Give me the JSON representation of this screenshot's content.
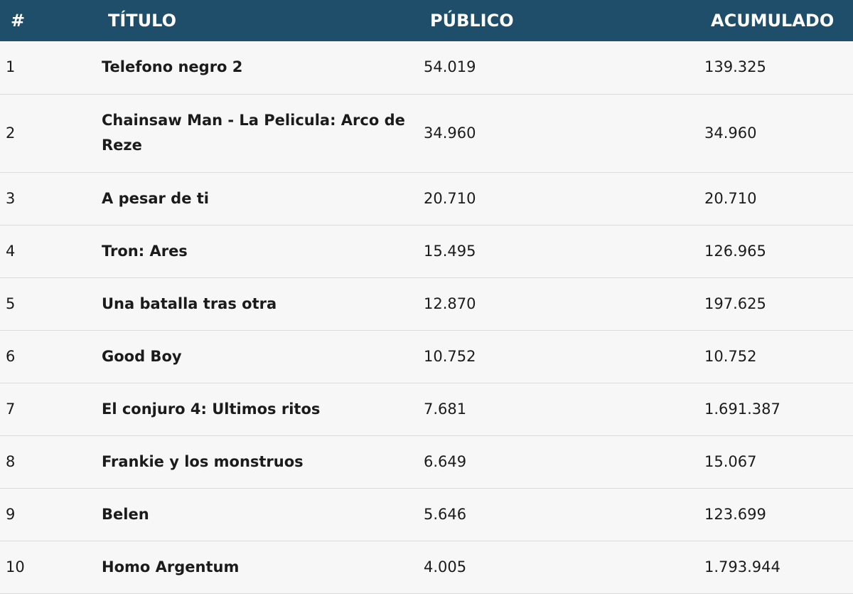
{
  "table": {
    "header": [
      "#",
      "TÍTULO",
      "PÚBLICO",
      "ACUMULADO"
    ],
    "rows": [
      [
        "1",
        "Telefono negro 2",
        "54.019",
        "139.325"
      ],
      [
        "2",
        "Chainsaw Man - La Pelicula: Arco de Reze",
        "34.960",
        "34.960"
      ],
      [
        "3",
        "A pesar de ti",
        "20.710",
        "20.710"
      ],
      [
        "4",
        "Tron: Ares",
        "15.495",
        "126.965"
      ],
      [
        "5",
        "Una batalla tras otra",
        "12.870",
        "197.625"
      ],
      [
        "6",
        "Good Boy",
        "10.752",
        "10.752"
      ],
      [
        "7",
        "El conjuro 4: Ultimos ritos",
        "7.681",
        "1.691.387"
      ],
      [
        "8",
        "Frankie y los monstruos",
        "6.649",
        "15.067"
      ],
      [
        "9",
        "Belen",
        "5.646",
        "123.699"
      ],
      [
        "10",
        "Homo Argentum",
        "4.005",
        "1.793.944"
      ]
    ]
  }
}
